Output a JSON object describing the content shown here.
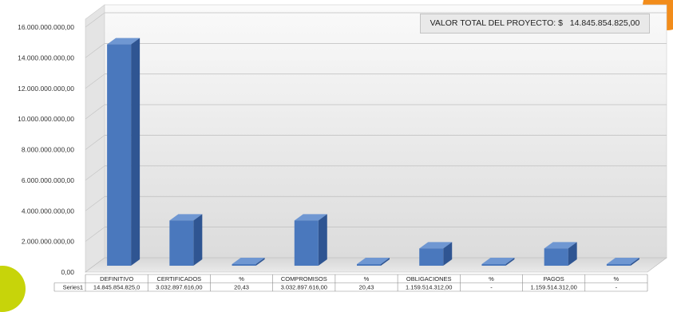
{
  "info_box": {
    "label": "VALOR TOTAL DEL PROYECTO: $",
    "value": "14.845.854.825,00"
  },
  "colors": {
    "bar_front": "#4a78bd",
    "bar_side": "#2f5592",
    "bar_top": "#6f97d2",
    "accent_orange": "#f28c1a",
    "accent_lime": "#c7d40a"
  },
  "chart_data": {
    "type": "bar",
    "style": "3d-column",
    "title": "",
    "xlabel": "",
    "ylabel": "",
    "ylim": [
      0,
      16000000000
    ],
    "y_ticks": [
      0,
      2000000000,
      4000000000,
      6000000000,
      8000000000,
      10000000000,
      12000000000,
      14000000000,
      16000000000
    ],
    "y_tick_labels": [
      "0,00",
      "2.000.000.000,00",
      "4.000.000.000,00",
      "6.000.000.000,00",
      "8.000.000.000,00",
      "10.000.000.000,00",
      "12.000.000.000,00",
      "14.000.000.000,00",
      "16.000.000.000,00"
    ],
    "grid": true,
    "categories": [
      "DEFINITIVO",
      "CERTIFICADOS",
      "%",
      "COMPROMISOS",
      "%",
      "OBLIGACIONES",
      "%",
      "PAGOS",
      "%"
    ],
    "series": [
      {
        "name": "Series1",
        "values": [
          14845854825,
          3032897616,
          20.43,
          3032897616,
          20.43,
          1159514312,
          0,
          1159514312,
          0
        ],
        "table_labels": [
          "14.845.854.825,0",
          "3.032.897.616,00",
          "20,43",
          "3.032.897.616,00",
          "20,43",
          "1.159.514.312,00",
          "-",
          "1.159.514.312,00",
          "-"
        ]
      }
    ],
    "data_table": true
  }
}
